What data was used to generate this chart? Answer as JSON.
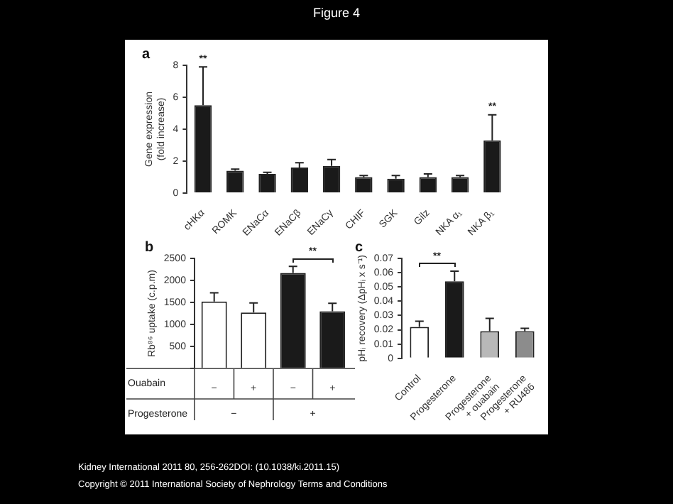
{
  "chart_data": [
    {
      "type": "bar",
      "title": "a",
      "ylabel": "Gene expression\n(fold increase)",
      "categories": [
        "cHKα",
        "ROMK",
        "ENaCα",
        "ENaCβ",
        "ENaCγ",
        "CHIF",
        "SGK",
        "Gilz",
        "NKA α₁",
        "NKA β₁"
      ],
      "values": [
        5.5,
        1.4,
        1.2,
        1.6,
        1.7,
        1.0,
        0.9,
        1.0,
        1.0,
        3.3
      ],
      "errors": [
        2.4,
        0.1,
        0.1,
        0.3,
        0.4,
        0.1,
        0.2,
        0.2,
        0.1,
        1.6
      ],
      "color": "#1a1a1a",
      "ylim": [
        0,
        8
      ],
      "yticks": [
        0,
        2,
        4,
        6,
        8
      ],
      "annotations": [
        "Figure 4",
        "Kidney International 2011 80, 256-262DOI: (10.1038/ki.2011.15)",
        "Copyright © 2011 International Society of Nephrology Terms and Conditions",
        {
          "text": "**",
          "x": "cHKα",
          "y": 8.1
        },
        {
          "text": "**",
          "x": "NKA β₁",
          "y": 5.1
        }
      ]
    },
    {
      "type": "bar",
      "title": "b",
      "ylabel": "Rb⁸⁶ uptake (c.p.m)",
      "categories": [
        "−",
        "+",
        "−",
        "+"
      ],
      "values": [
        1520,
        1270,
        2170,
        1300
      ],
      "errors": [
        200,
        220,
        150,
        180
      ],
      "colors": [
        "#ffffff",
        "#ffffff",
        "#1a1a1a",
        "#1a1a1a"
      ],
      "ylim": [
        0,
        2500
      ],
      "yticks": [
        {
          "value": 0,
          "label": null
        },
        500,
        1000,
        1500,
        2000,
        2500
      ],
      "annotations": [
        "**",
        "Ouabain",
        "Progesterone",
        "−",
        "+"
      ]
    },
    {
      "type": "bar",
      "title": "c",
      "ylabel": "pHᵢ recovery (ΔpHᵢ x s⁻¹)",
      "categories": [
        "Control",
        "Progesterone",
        "Progesterone\n+ ouabain",
        "Progesterone\n+ RU486"
      ],
      "values": [
        0.022,
        0.054,
        0.019,
        0.019
      ],
      "errors": [
        0.004,
        0.007,
        0.009,
        0.002
      ],
      "colors": [
        "#ffffff",
        "#1a1a1a",
        "#b8b8b8",
        "#8c8c8c"
      ],
      "ylim": [
        0,
        0.07
      ],
      "yticks": [
        0,
        0.01,
        0.02,
        0.03,
        0.04,
        0.05,
        0.06,
        0.07
      ],
      "annotations": [
        "**"
      ]
    }
  ]
}
